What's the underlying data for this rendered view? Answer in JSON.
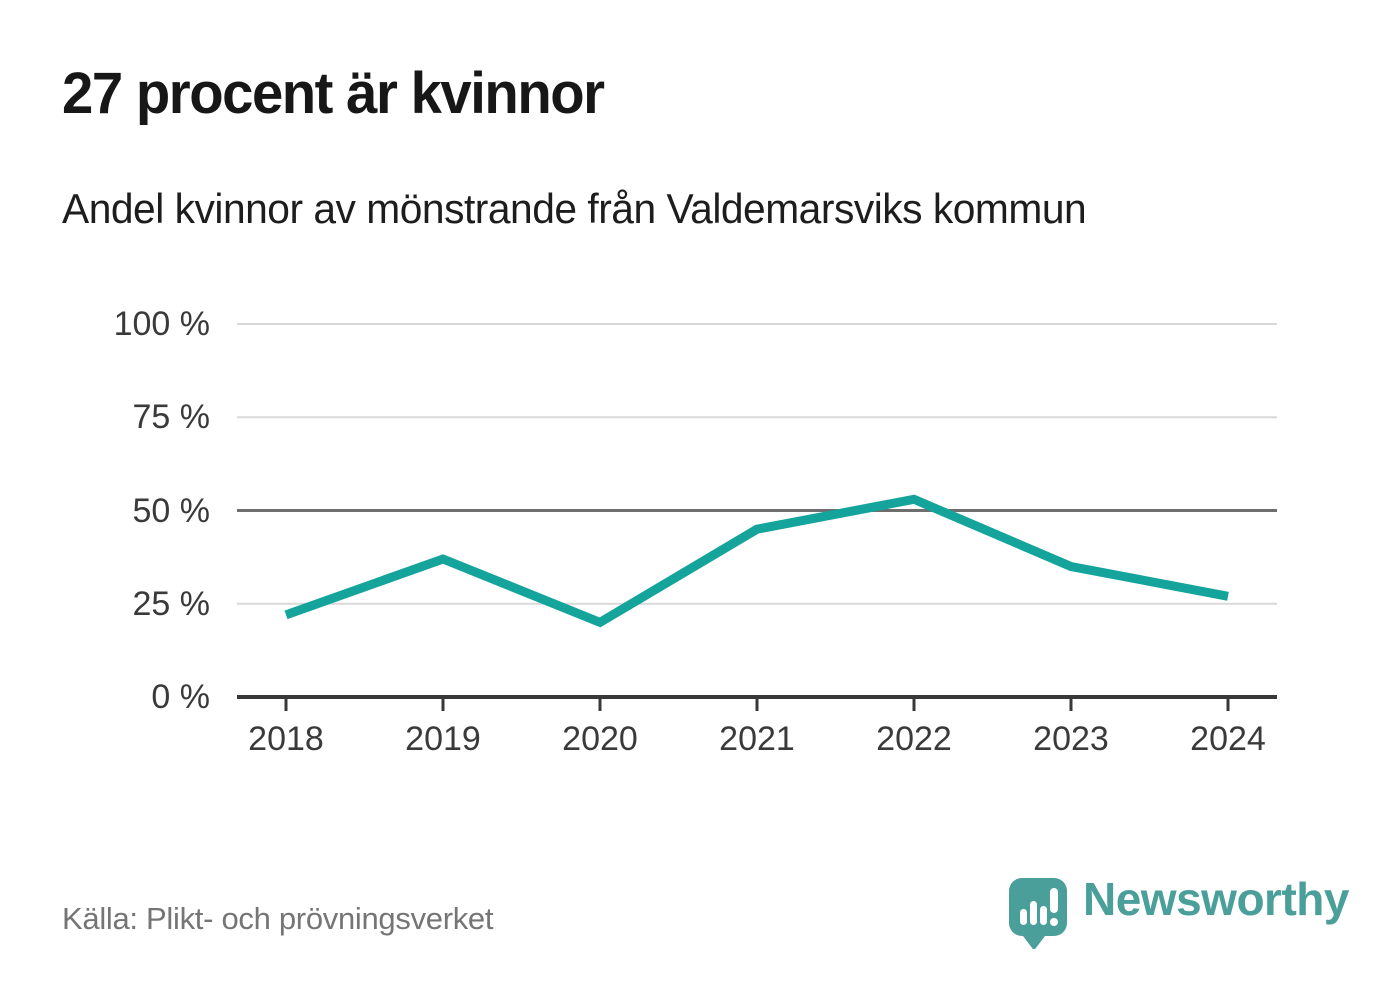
{
  "header": {
    "title": "27 procent är kvinnor",
    "subtitle": "Andel kvinnor av mönstrande från Valdemarsviks kommun"
  },
  "chart_data": {
    "type": "line",
    "categories": [
      "2018",
      "2019",
      "2020",
      "2021",
      "2022",
      "2023",
      "2024"
    ],
    "series": [
      {
        "name": "Andel kvinnor av mönstrande",
        "values": [
          22,
          37,
          20,
          45,
          53,
          35,
          27
        ]
      }
    ],
    "title": "27 procent är kvinnor",
    "subtitle": "Andel kvinnor av mönstrande från Valdemarsviks kommun",
    "xlabel": "",
    "ylabel": "",
    "ylim": [
      0,
      100
    ],
    "y_ticks": [
      0,
      25,
      50,
      75,
      100
    ],
    "y_tick_suffix": " %",
    "grid": "horizontal",
    "emphasized_gridline": 50,
    "legend": "none",
    "line_color": "#14a49c"
  },
  "footer": {
    "source": "Källa: Plikt- och prövningsverket",
    "brand": "Newsworthy"
  },
  "icons": {
    "brand_icon": "newsworthy-speech-bubble-chart-icon"
  },
  "colors": {
    "accent_teal": "#14a49c",
    "brand_teal": "#4a9f9a",
    "grid_light": "#d9d9d9",
    "grid_emphasis": "#6e6e6e",
    "axis_dark": "#383838",
    "text_dark": "#1d1d1d",
    "text_muted": "#757575"
  }
}
